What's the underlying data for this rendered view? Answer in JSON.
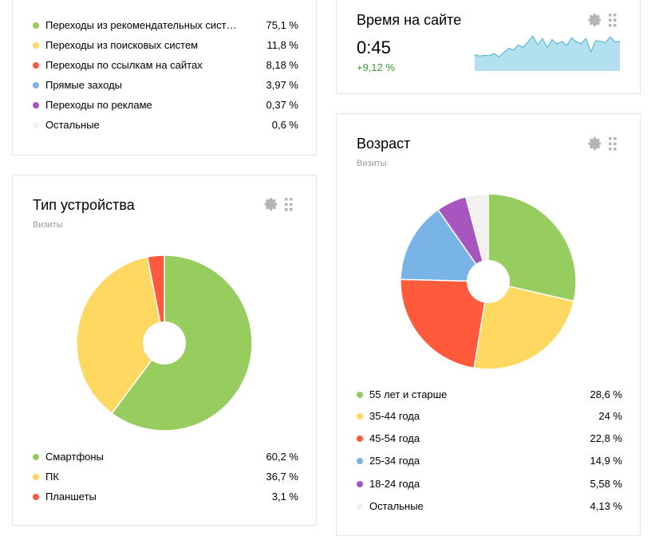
{
  "colors": {
    "green": "#97cd5f",
    "yellow": "#ffd862",
    "red": "#ff5a3c",
    "blue": "#78b4e6",
    "purple": "#a756c0",
    "light": "#f1f1f1",
    "sparkline_fill": "#b2e0ee",
    "sparkline_line": "#5cb8dc",
    "delta_green": "#3a9c3a",
    "icon_gray": "#b5b5b5"
  },
  "sources": {
    "items": [
      {
        "label": "Переходы из рекомендательных сист…",
        "value": "75,1 %",
        "color": "green"
      },
      {
        "label": "Переходы из поисковых систем",
        "value": "11,8 %",
        "color": "yellow"
      },
      {
        "label": "Переходы по ссылкам на сайтах",
        "value": "8,18 %",
        "color": "red"
      },
      {
        "label": "Прямые заходы",
        "value": "3,97 %",
        "color": "blue"
      },
      {
        "label": "Переходы по рекламе",
        "value": "0,37 %",
        "color": "purple"
      },
      {
        "label": "Остальные",
        "value": "0,6 %",
        "color": "light"
      }
    ]
  },
  "time_on_site": {
    "title": "Время на сайте",
    "value": "0:45",
    "delta": "+9,12 %",
    "sparkline": [
      0.42,
      0.38,
      0.4,
      0.39,
      0.45,
      0.36,
      0.48,
      0.6,
      0.55,
      0.7,
      0.62,
      0.78,
      0.95,
      0.7,
      0.88,
      0.62,
      0.85,
      0.72,
      0.8,
      0.68,
      0.9,
      0.78,
      0.74,
      0.88,
      0.5,
      0.82,
      0.8,
      0.76,
      0.92,
      0.78,
      0.8
    ]
  },
  "devices": {
    "title": "Тип устройства",
    "subtitle": "Визиты",
    "items": [
      {
        "label": "Смартфоны",
        "value": "60,2 %",
        "color": "green"
      },
      {
        "label": "ПК",
        "value": "36,7 %",
        "color": "yellow"
      },
      {
        "label": "Планшеты",
        "value": "3,1 %",
        "color": "red"
      }
    ]
  },
  "age": {
    "title": "Возраст",
    "subtitle": "Визиты",
    "items": [
      {
        "label": "55 лет и старше",
        "value": "28,6 %",
        "color": "green"
      },
      {
        "label": "35-44 года",
        "value": "24 %",
        "color": "yellow"
      },
      {
        "label": "45-54 года",
        "value": "22,8 %",
        "color": "red"
      },
      {
        "label": "25-34 года",
        "value": "14,9 %",
        "color": "blue"
      },
      {
        "label": "18-24 года",
        "value": "5,58 %",
        "color": "purple"
      },
      {
        "label": "Остальные",
        "value": "4,13 %",
        "color": "light"
      }
    ]
  },
  "chart_data": [
    {
      "type": "pie",
      "title": "Тип устройства",
      "subtitle": "Визиты",
      "categories": [
        "Смартфоны",
        "ПК",
        "Планшеты"
      ],
      "values": [
        60.2,
        36.7,
        3.1
      ],
      "colors": [
        "green",
        "yellow",
        "red"
      ]
    },
    {
      "type": "pie",
      "title": "Возраст",
      "subtitle": "Визиты",
      "categories": [
        "55 лет и старше",
        "35-44 года",
        "45-54 года",
        "25-34 года",
        "18-24 года",
        "Остальные"
      ],
      "values": [
        28.6,
        24,
        22.8,
        14.9,
        5.58,
        4.13
      ],
      "colors": [
        "green",
        "yellow",
        "red",
        "blue",
        "purple",
        "light"
      ]
    }
  ]
}
